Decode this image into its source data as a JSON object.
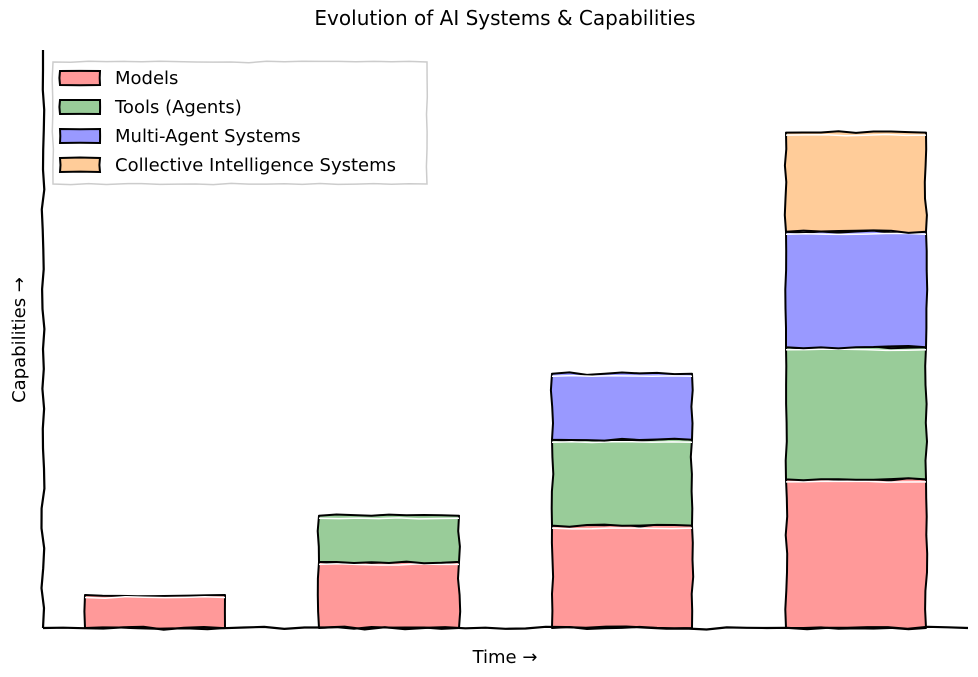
{
  "chart_data": {
    "type": "bar",
    "stacked": true,
    "title": "Evolution of AI Systems & Capabilities",
    "xlabel": "Time →",
    "ylabel": "Capabilities →",
    "categories": [
      "",
      "",
      "",
      ""
    ],
    "series": [
      {
        "name": "Models",
        "color": "#ff9999",
        "values": [
          1.0,
          2.0,
          3.1,
          4.5
        ]
      },
      {
        "name": "Tools (Agents)",
        "color": "#99cc99",
        "values": [
          0,
          1.4,
          2.6,
          4.0
        ]
      },
      {
        "name": "Multi-Agent Systems",
        "color": "#9999ff",
        "values": [
          0,
          0,
          2.0,
          3.5
        ]
      },
      {
        "name": "Collective Intelligence Systems",
        "color": "#ffcc99",
        "values": [
          0,
          0,
          0,
          3.0
        ]
      }
    ],
    "ylim": [
      0,
      17.5
    ],
    "grid": false,
    "legend_position": "top-left",
    "style": "hand-drawn"
  }
}
